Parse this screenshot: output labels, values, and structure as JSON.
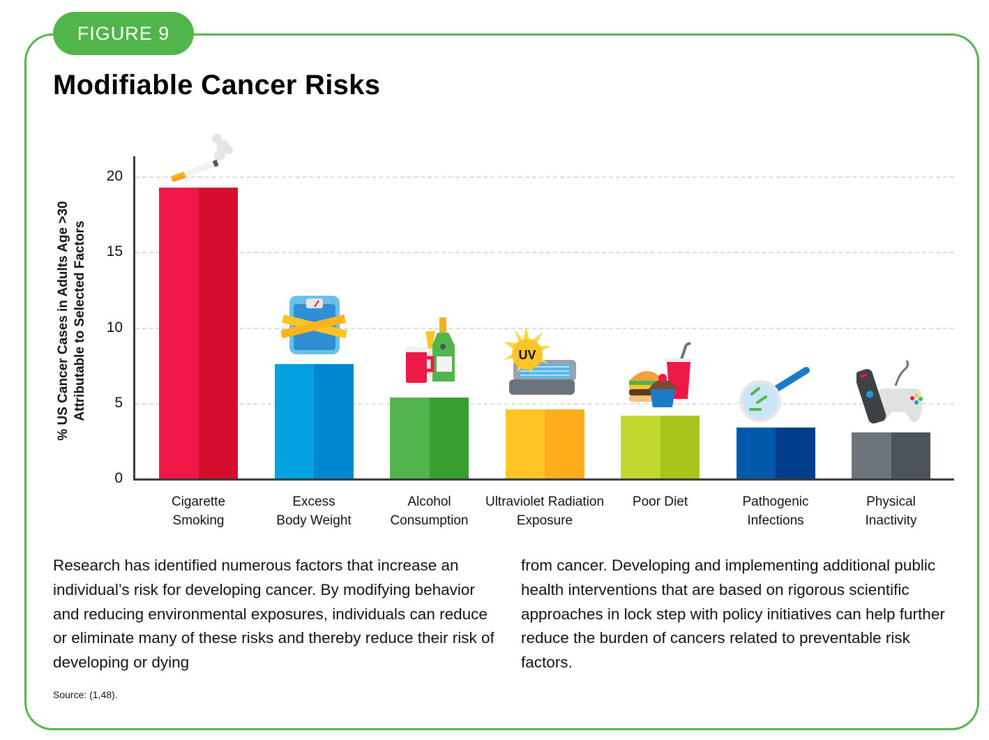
{
  "badge": "FIGURE 9",
  "title": "Modifiable Cancer Risks",
  "colors": {
    "frame": "#52b54b",
    "axis": "#3a3a3a",
    "grid": "#dddddd"
  },
  "chart_data": {
    "type": "bar",
    "title": "Modifiable Cancer Risks",
    "xlabel": "",
    "ylabel": "% US Cancer Cases in Adults Age >30 Attributable to Selected Factors",
    "ylabel_lines": [
      "% US Cancer Cases in Adults Age >30",
      "Attributable to Selected Factors"
    ],
    "ylim": [
      0,
      20
    ],
    "yticks": [
      0,
      5,
      10,
      15,
      20
    ],
    "grid": true,
    "legend": null,
    "categories": [
      "Cigarette Smoking",
      "Excess Body Weight",
      "Alcohol Consumption",
      "Ultraviolet Radiation Exposure",
      "Poor Diet",
      "Pathogenic Infections",
      "Physical Inactivity"
    ],
    "category_lines": [
      [
        "Cigarette",
        "Smoking"
      ],
      [
        "Excess",
        "Body Weight"
      ],
      [
        "Alcohol",
        "Consumption"
      ],
      [
        "Ultraviolet Radiation",
        "Exposure"
      ],
      [
        "Poor Diet",
        ""
      ],
      [
        "Pathogenic",
        "Infections"
      ],
      [
        "Physical",
        "Inactivity"
      ]
    ],
    "values": [
      19.3,
      7.6,
      5.4,
      4.6,
      4.2,
      3.4,
      3.1
    ],
    "bar_colors": [
      {
        "light": "#ee1946",
        "dark": "#d40e2c"
      },
      {
        "light": "#00a3e0",
        "dark": "#0087d4"
      },
      {
        "light": "#52b54b",
        "dark": "#379e2f"
      },
      {
        "light": "#ffc425",
        "dark": "#ffad1a"
      },
      {
        "light": "#c1d72e",
        "dark": "#a8c41b"
      },
      {
        "light": "#005aaa",
        "dark": "#003e8c"
      },
      {
        "light": "#6b737b",
        "dark": "#4b545a"
      }
    ],
    "icons": [
      "cigarette-icon",
      "scale-with-tape-measure-icon",
      "beer-champagne-icon",
      "uv-tanning-bed-icon",
      "burger-cupcake-soda-icon",
      "magnifier-bacteria-icon",
      "remote-gamepad-icon"
    ]
  },
  "body": {
    "col1": "Research has identified numerous factors that increase an individual’s risk for developing cancer. By modifying behavior and reducing environmental exposures, individuals can reduce or eliminate many of these risks and thereby reduce their risk of developing or dying",
    "col2": "from cancer. Developing and implementing additional public health interventions that are based on rigorous scientific approaches in lock step with policy initiatives can help further reduce the burden of cancers related to preventable risk factors."
  },
  "icon_texts": {
    "uv": "UV"
  },
  "source": "Source: (1,48)."
}
